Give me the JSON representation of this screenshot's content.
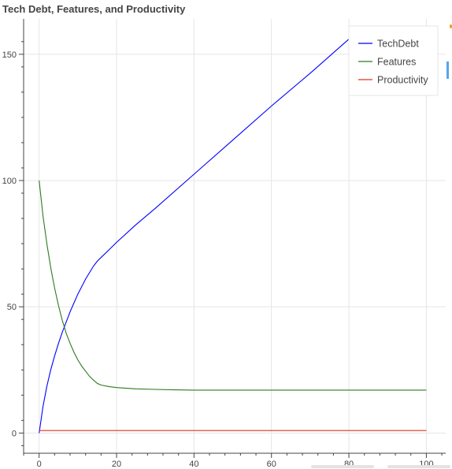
{
  "chart_data": {
    "type": "line",
    "title": "Tech Debt, Features, and Productivity",
    "xlabel": "",
    "ylabel": "",
    "xlim": [
      -4,
      105
    ],
    "ylim": [
      -8,
      164
    ],
    "grid": true,
    "legend_placement": "top-right",
    "x_ticks": [
      0,
      20,
      40,
      60,
      80,
      100
    ],
    "y_ticks": [
      0,
      50,
      100,
      150
    ],
    "series": [
      {
        "name": "TechDebt",
        "color": "#0000ff",
        "x": [
          0,
          1,
          2,
          3,
          4,
          5,
          6,
          7,
          8,
          9,
          10,
          11,
          12,
          13,
          14,
          15,
          16,
          18,
          20,
          25,
          30,
          40,
          50,
          60,
          70,
          80
        ],
        "y": [
          0,
          10.5,
          18.5,
          25,
          30.5,
          35.5,
          40,
          44,
          48,
          51.5,
          55,
          58,
          61,
          63.5,
          66,
          68,
          69.5,
          72.5,
          75.5,
          82.5,
          89,
          102.5,
          116,
          129.5,
          142.5,
          156
        ]
      },
      {
        "name": "Features",
        "color": "#2d7a1f",
        "x": [
          0,
          1,
          2,
          3,
          4,
          5,
          6,
          7,
          8,
          9,
          10,
          11,
          12,
          13,
          14,
          15,
          16,
          18,
          20,
          25,
          30,
          35,
          40,
          50,
          60,
          80,
          100
        ],
        "y": [
          100,
          86,
          75,
          65.5,
          57.5,
          50.5,
          44.5,
          39.5,
          35.5,
          32,
          29,
          26.5,
          24.5,
          22.5,
          21,
          19.7,
          19,
          18.4,
          18,
          17.5,
          17.3,
          17.1,
          17,
          17,
          17,
          17,
          17
        ]
      },
      {
        "name": "Productivity",
        "color": "#e0341b",
        "x": [
          0,
          100
        ],
        "y": [
          1,
          1
        ]
      }
    ]
  }
}
